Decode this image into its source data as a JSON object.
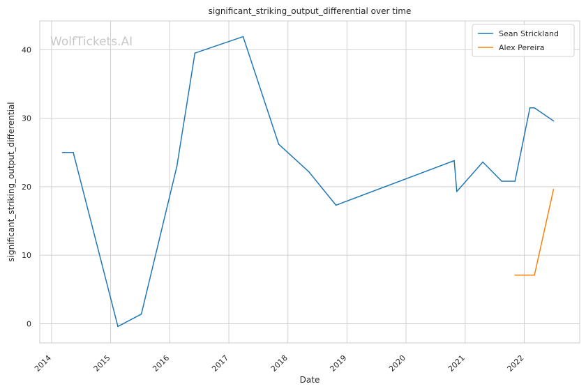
{
  "watermark": "WolfTickets.AI",
  "chart_data": {
    "type": "line",
    "title": "significant_striking_output_differential over time",
    "xlabel": "Date",
    "ylabel": "significant_striking_output_differential",
    "xlim": [
      "2013-10-20",
      "2022-12-10"
    ],
    "ylim": [
      -2.8,
      44.2
    ],
    "x_ticks": [
      "2014",
      "2015",
      "2016",
      "2017",
      "2018",
      "2019",
      "2020",
      "2021",
      "2022"
    ],
    "y_ticks": [
      0,
      10,
      20,
      30,
      40
    ],
    "grid": true,
    "legend_position": "top-right",
    "series": [
      {
        "name": "Sean Strickland",
        "color": "#1f77b4",
        "points": [
          {
            "x": "2014-03-10",
            "y": 25.0
          },
          {
            "x": "2014-05-15",
            "y": 25.0
          },
          {
            "x": "2015-02-15",
            "y": -0.4
          },
          {
            "x": "2015-07-10",
            "y": 1.4
          },
          {
            "x": "2016-02-15",
            "y": 23.0
          },
          {
            "x": "2016-06-05",
            "y": 39.5
          },
          {
            "x": "2017-03-30",
            "y": 41.9
          },
          {
            "x": "2017-11-05",
            "y": 26.2
          },
          {
            "x": "2018-05-10",
            "y": 22.2
          },
          {
            "x": "2018-10-25",
            "y": 17.3
          },
          {
            "x": "2020-10-25",
            "y": 23.8
          },
          {
            "x": "2020-11-10",
            "y": 19.3
          },
          {
            "x": "2021-04-20",
            "y": 23.6
          },
          {
            "x": "2021-08-15",
            "y": 20.8
          },
          {
            "x": "2021-11-05",
            "y": 20.8
          },
          {
            "x": "2022-02-05",
            "y": 31.5
          },
          {
            "x": "2022-03-05",
            "y": 31.5
          },
          {
            "x": "2022-07-01",
            "y": 29.6
          }
        ]
      },
      {
        "name": "Alex Pereira",
        "color": "#ff7f0e",
        "points": [
          {
            "x": "2021-11-06",
            "y": 7.1
          },
          {
            "x": "2022-03-05",
            "y": 7.1
          },
          {
            "x": "2022-07-01",
            "y": 19.6
          }
        ]
      }
    ]
  }
}
